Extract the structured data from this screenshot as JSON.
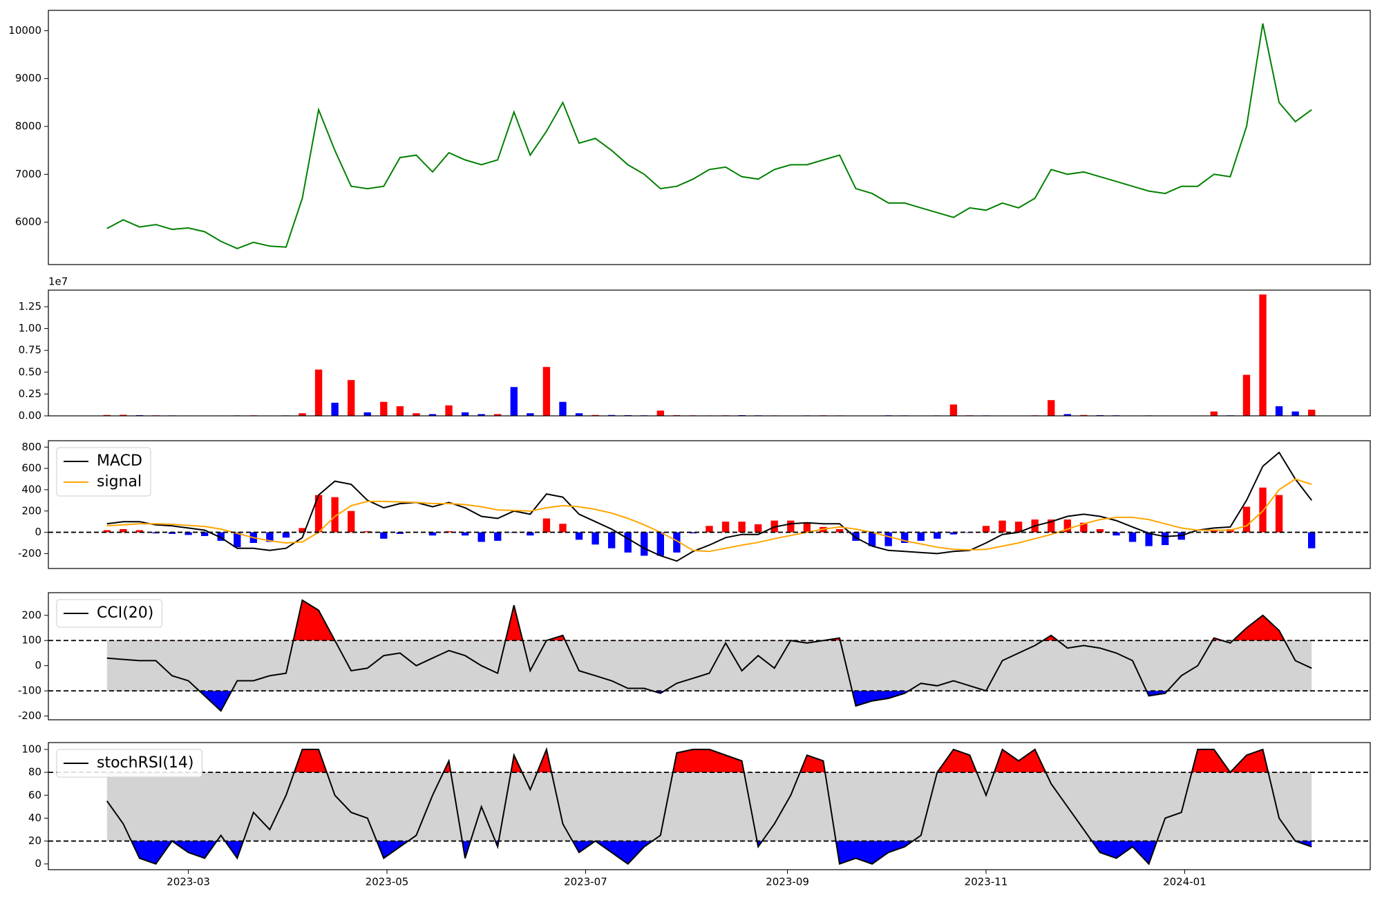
{
  "chart_data": [
    {
      "type": "line",
      "color": "green",
      "x": [
        19392,
        19397,
        19402,
        19407,
        19412,
        19417,
        19422,
        19427,
        19432,
        19437,
        19442,
        19447,
        19452,
        19457,
        19462,
        19467,
        19472,
        19477,
        19482,
        19487,
        19492,
        19497,
        19502,
        19507,
        19512,
        19517,
        19522,
        19527,
        19532,
        19537,
        19542,
        19547,
        19552,
        19557,
        19562,
        19567,
        19572,
        19577,
        19582,
        19587,
        19592,
        19597,
        19602,
        19607,
        19612,
        19617,
        19622,
        19627,
        19632,
        19637,
        19642,
        19647,
        19652,
        19657,
        19662,
        19667,
        19672,
        19677,
        19682,
        19687,
        19692,
        19697,
        19702,
        19707,
        19712,
        19717,
        19722,
        19727,
        19732,
        19737,
        19742,
        19747,
        19752,
        19757,
        19762
      ],
      "xlim": [
        19374,
        19780
      ],
      "values": [
        5870,
        6050,
        5900,
        5950,
        5850,
        5880,
        5800,
        5600,
        5450,
        5580,
        5500,
        5480,
        6500,
        8350,
        7500,
        6750,
        6700,
        6750,
        7350,
        7400,
        7050,
        7450,
        7300,
        7200,
        7300,
        8300,
        7400,
        7900,
        8500,
        7650,
        7750,
        7500,
        7200,
        7000,
        6700,
        6750,
        6900,
        7100,
        7150,
        6950,
        6900,
        7100,
        7200,
        7200,
        7300,
        7400,
        6700,
        6600,
        6400,
        6400,
        6300,
        6200,
        6100,
        6300,
        6250,
        6400,
        6300,
        6500,
        7100,
        7000,
        7050,
        6950,
        6850,
        6750,
        6650,
        6600,
        6750,
        6750,
        7000,
        6950,
        8000,
        10150,
        8500,
        8100,
        8350
      ],
      "ylim": [
        5115,
        10424
      ],
      "yticks": [
        6000,
        7000,
        8000,
        9000,
        10000
      ]
    },
    {
      "type": "bar",
      "sharex": true,
      "offset_label": "1e7",
      "values": [
        100000,
        120000,
        80000,
        60000,
        50000,
        40000,
        30000,
        40000,
        50000,
        60000,
        40000,
        50000,
        300000,
        5300000,
        1500000,
        4100000,
        400000,
        1600000,
        1100000,
        300000,
        200000,
        1200000,
        400000,
        200000,
        200000,
        3300000,
        300000,
        5600000,
        1600000,
        300000,
        100000,
        100000,
        80000,
        60000,
        600000,
        80000,
        60000,
        50000,
        60000,
        80000,
        60000,
        50000,
        40000,
        50000,
        60000,
        50000,
        40000,
        40000,
        60000,
        50000,
        40000,
        50000,
        1300000,
        60000,
        50000,
        40000,
        40000,
        60000,
        1800000,
        200000,
        100000,
        80000,
        60000,
        40000,
        50000,
        40000,
        30000,
        40000,
        500000,
        60000,
        4700000,
        13900000,
        1100000,
        500000,
        700000
      ],
      "colors": [
        "red",
        "red",
        "blue",
        "red",
        "blue",
        "red",
        "blue",
        "blue",
        "blue",
        "red",
        "blue",
        "blue",
        "red",
        "red",
        "blue",
        "red",
        "blue",
        "red",
        "red",
        "red",
        "blue",
        "red",
        "blue",
        "blue",
        "red",
        "blue",
        "blue",
        "red",
        "blue",
        "blue",
        "red",
        "blue",
        "blue",
        "blue",
        "red",
        "red",
        "red",
        "red",
        "red",
        "blue",
        "blue",
        "red",
        "red",
        "blue",
        "red",
        "red",
        "blue",
        "blue",
        "blue",
        "blue",
        "blue",
        "blue",
        "red",
        "red",
        "blue",
        "red",
        "blue",
        "red",
        "red",
        "blue",
        "red",
        "blue",
        "blue",
        "blue",
        "blue",
        "blue",
        "red",
        "blue",
        "red",
        "blue",
        "red",
        "red",
        "blue",
        "blue",
        "red"
      ],
      "ylim": [
        0,
        14400000
      ],
      "yticks": [
        {
          "value": 0,
          "label": "0.00"
        },
        {
          "value": 2500000,
          "label": "0.25"
        },
        {
          "value": 5000000,
          "label": "0.50"
        },
        {
          "value": 7500000,
          "label": "0.75"
        },
        {
          "value": 10000000,
          "label": "1.00"
        },
        {
          "value": 12500000,
          "label": "1.25"
        }
      ]
    },
    {
      "type": "line",
      "sharex": true,
      "legend": "upper left",
      "series": [
        {
          "name": "MACD",
          "color": "black",
          "values": [
            80,
            100,
            100,
            70,
            60,
            40,
            20,
            -50,
            -150,
            -150,
            -170,
            -150,
            -50,
            350,
            480,
            450,
            300,
            230,
            270,
            280,
            240,
            280,
            230,
            150,
            130,
            200,
            170,
            360,
            330,
            170,
            100,
            30,
            -60,
            -150,
            -220,
            -270,
            -180,
            -120,
            -50,
            -20,
            -20,
            50,
            80,
            90,
            80,
            80,
            -50,
            -130,
            -170,
            -180,
            -190,
            -200,
            -180,
            -170,
            -100,
            -20,
            0,
            60,
            100,
            150,
            170,
            150,
            110,
            50,
            -10,
            -40,
            -30,
            20,
            40,
            50,
            300,
            620,
            750,
            500,
            300
          ]
        },
        {
          "name": "signal",
          "color": "orange",
          "values": [
            60,
            70,
            80,
            80,
            75,
            65,
            55,
            30,
            -10,
            -50,
            -80,
            -100,
            -90,
            0,
            150,
            250,
            290,
            290,
            285,
            280,
            270,
            270,
            260,
            240,
            210,
            205,
            200,
            230,
            250,
            240,
            215,
            180,
            130,
            70,
            0,
            -80,
            -170,
            -180,
            -150,
            -120,
            -95,
            -60,
            -30,
            0,
            30,
            50,
            30,
            0,
            -40,
            -80,
            -110,
            -140,
            -160,
            -165,
            -160,
            -130,
            -100,
            -60,
            -20,
            30,
            80,
            120,
            140,
            140,
            120,
            80,
            40,
            20,
            20,
            20,
            60,
            200,
            400,
            500,
            450
          ]
        }
      ],
      "histogram": {
        "up_color": "red",
        "down_color": "blue",
        "values": [
          20,
          30,
          20,
          -10,
          -15,
          -25,
          -35,
          -80,
          -140,
          -100,
          -90,
          -50,
          40,
          350,
          330,
          200,
          10,
          -60,
          -15,
          0,
          -30,
          10,
          -30,
          -90,
          -80,
          -5,
          -30,
          130,
          80,
          -70,
          -115,
          -150,
          -190,
          -220,
          -220,
          -190,
          -10,
          60,
          100,
          100,
          75,
          110,
          110,
          90,
          50,
          30,
          -80,
          -130,
          -130,
          -100,
          -80,
          -60,
          -20,
          -5,
          60,
          110,
          100,
          120,
          120,
          120,
          90,
          30,
          -30,
          -90,
          -130,
          -120,
          -70,
          0,
          20,
          30,
          240,
          420,
          350,
          0,
          -150
        ]
      },
      "hlines": [
        0
      ],
      "ylim": [
        -340,
        860
      ],
      "yticks": [
        -200,
        0,
        200,
        400,
        600,
        800
      ]
    },
    {
      "type": "band",
      "sharex": true,
      "legend": "upper left",
      "series": [
        {
          "name": "CCI(20)",
          "color": "black",
          "values": [
            30,
            25,
            20,
            20,
            -40,
            -60,
            -120,
            -180,
            -60,
            -60,
            -40,
            -30,
            260,
            220,
            100,
            -20,
            -10,
            40,
            50,
            0,
            30,
            60,
            40,
            0,
            -30,
            240,
            -20,
            100,
            120,
            -20,
            -40,
            -60,
            -90,
            -90,
            -110,
            -70,
            -50,
            -30,
            90,
            -20,
            40,
            -10,
            100,
            90,
            100,
            110,
            -160,
            -140,
            -130,
            -110,
            -70,
            -80,
            -60,
            -80,
            -100,
            20,
            50,
            80,
            120,
            70,
            80,
            70,
            50,
            20,
            -120,
            -110,
            -40,
            0,
            110,
            90,
            150,
            200,
            140,
            20,
            -10
          ]
        }
      ],
      "bands": [
        -100,
        100
      ],
      "band_color": "lightgray",
      "upper_color": "red",
      "lower_color": "blue",
      "ylim": [
        -215,
        290
      ],
      "yticks": [
        -200,
        -100,
        0,
        100,
        200
      ]
    },
    {
      "type": "band",
      "sharex": true,
      "legend": "upper left",
      "series": [
        {
          "name": "stochRSI(14)",
          "color": "black",
          "values": [
            55,
            35,
            5,
            0,
            20,
            10,
            5,
            25,
            5,
            45,
            30,
            60,
            100,
            100,
            60,
            45,
            40,
            5,
            15,
            25,
            60,
            90,
            5,
            50,
            15,
            95,
            65,
            100,
            35,
            10,
            20,
            10,
            0,
            15,
            25,
            97,
            100,
            100,
            95,
            90,
            15,
            35,
            60,
            95,
            90,
            0,
            5,
            0,
            10,
            15,
            25,
            80,
            100,
            95,
            60,
            100,
            90,
            100,
            70,
            50,
            30,
            10,
            5,
            15,
            0,
            40,
            45,
            100,
            100,
            80,
            95,
            100,
            40,
            20,
            15
          ]
        }
      ],
      "bands": [
        20,
        80
      ],
      "band_color": "lightgray",
      "upper_color": "red",
      "lower_color": "blue",
      "ylim": [
        -5,
        106
      ],
      "yticks": [
        0,
        20,
        40,
        60,
        80,
        100
      ],
      "xticks": [
        {
          "value": 19417,
          "label": "2023-03"
        },
        {
          "value": 19478,
          "label": "2023-05"
        },
        {
          "value": 19539,
          "label": "2023-07"
        },
        {
          "value": 19601,
          "label": "2023-09"
        },
        {
          "value": 19662,
          "label": "2023-11"
        },
        {
          "value": 19723,
          "label": "2024-01"
        }
      ]
    }
  ]
}
